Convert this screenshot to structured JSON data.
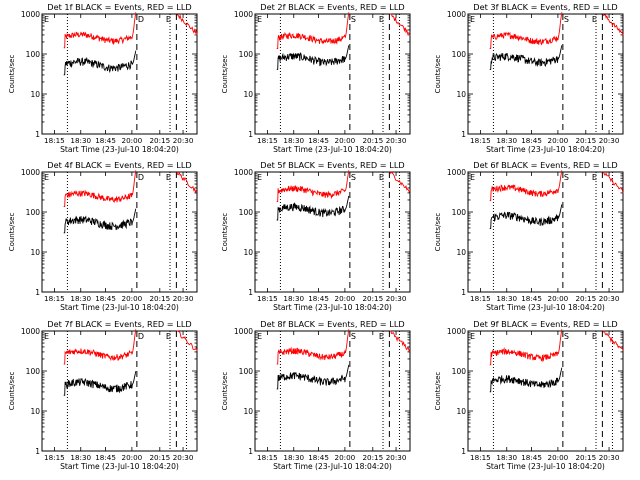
{
  "chart_data": {
    "type": "line",
    "yscale": "log",
    "ylim": [
      1,
      1000
    ],
    "y_tick_labels": [
      "1",
      "10",
      "100",
      "1000"
    ],
    "x_tick_labels": [
      "18:15",
      "18:30",
      "18:45",
      "20:00",
      "20:15",
      "20:30"
    ],
    "ylabel": "Counts/sec",
    "xlabel": "Start Time (23-Jul-10 18:04:20)",
    "markers": {
      "e_label": "E",
      "s_label": "S",
      "d_label": "D"
    },
    "colors": {
      "events": "#000000",
      "lld": "#ff0000",
      "background": "#ffffff"
    },
    "panels": [
      {
        "title": "Det 1f BLACK = Events, RED = LLD",
        "letter": "D",
        "red_level": 260,
        "black_level": 55
      },
      {
        "title": "Det 2f BLACK = Events, RED = LLD",
        "letter": "S",
        "red_level": 250,
        "black_level": 75
      },
      {
        "title": "Det 3f BLACK = Events, RED = LLD",
        "letter": "S",
        "red_level": 250,
        "black_level": 75
      },
      {
        "title": "Det 4f BLACK = Events, RED = LLD",
        "letter": "D",
        "red_level": 250,
        "black_level": 55
      },
      {
        "title": "Det 5f BLACK = Events, RED = LLD",
        "letter": "S",
        "red_level": 330,
        "black_level": 115
      },
      {
        "title": "Det 6f BLACK = Events, RED = LLD",
        "letter": "S",
        "red_level": 350,
        "black_level": 70
      },
      {
        "title": "Det 7f BLACK = Events, RED = LLD",
        "letter": "D",
        "red_level": 270,
        "black_level": 45
      },
      {
        "title": "Det 8f BLACK = Events, RED = LLD",
        "letter": "S",
        "red_level": 270,
        "black_level": 65
      },
      {
        "title": "Det 9f BLACK = Events, RED = LLD",
        "letter": "S",
        "red_level": 260,
        "black_level": 55
      }
    ]
  }
}
